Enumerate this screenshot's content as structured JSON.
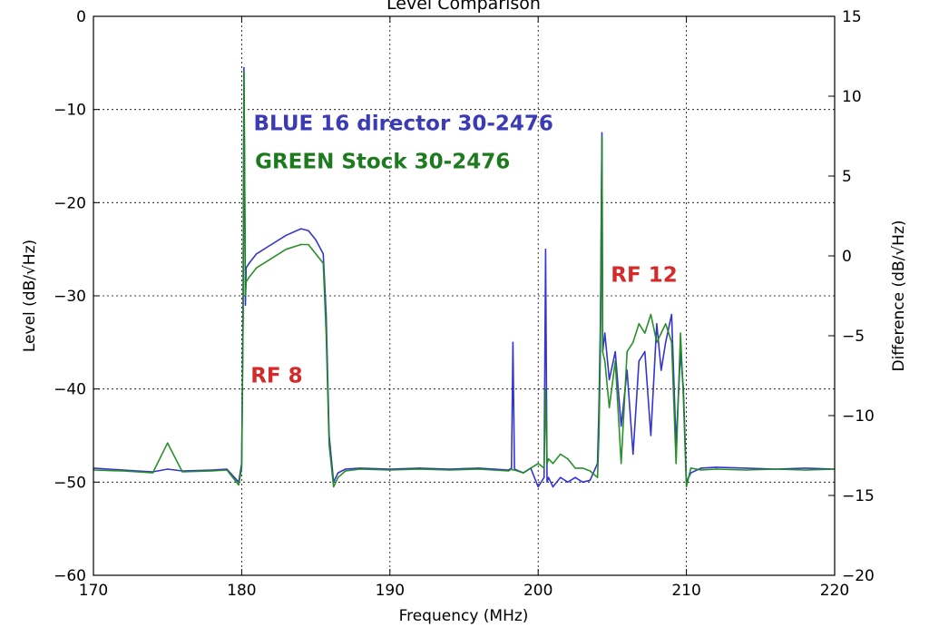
{
  "chart_data": {
    "type": "line",
    "title": "Level Comparison",
    "xlabel": "Frequency (MHz)",
    "ylabel": "Level (dB/√Hz)",
    "y2label": "Difference (dB/√Hz)",
    "xlim": [
      170,
      220
    ],
    "ylim": [
      -60,
      0
    ],
    "y2lim": [
      -20,
      15
    ],
    "xticks": [
      170,
      180,
      190,
      200,
      210,
      220
    ],
    "yticks": [
      0,
      -10,
      -20,
      -30,
      -40,
      -50,
      -60
    ],
    "y2ticks": [
      15,
      10,
      5,
      0,
      -5,
      -10,
      -15,
      -20
    ],
    "xtick_labels": [
      "170",
      "180",
      "190",
      "200",
      "210",
      "220"
    ],
    "ytick_labels": [
      "0",
      "−10",
      "−20",
      "−30",
      "−40",
      "−50",
      "−60"
    ],
    "y2tick_labels": [
      "15",
      "10",
      "5",
      "0",
      "−5",
      "−10",
      "−15",
      "−20"
    ],
    "grid": true,
    "annotations": [
      {
        "text": "BLUE 16 director 30-2476",
        "color": "#3b3bb5",
        "x": 180.8,
        "y": -12.2
      },
      {
        "text": "GREEN Stock 30-2476",
        "color": "#1e7a1e",
        "x": 180.9,
        "y": -16.3
      },
      {
        "text": "RF 8",
        "color": "#d42a2a",
        "x": 180.6,
        "y": -39.3
      },
      {
        "text": "RF 12",
        "color": "#d42a2a",
        "x": 204.9,
        "y": -28.5
      }
    ],
    "series": [
      {
        "color": "#2a2acc",
        "x": [
          170,
          172,
          174,
          175,
          176,
          178,
          179,
          179.8,
          180,
          180.1,
          180.15,
          180.25,
          180.3,
          180.5,
          181,
          182,
          183,
          184,
          184.5,
          185,
          185.5,
          185.7,
          185.9,
          186.2,
          186.5,
          187,
          188,
          190,
          192,
          194,
          196,
          198,
          198.2,
          198.3,
          198.4,
          199,
          199.5,
          200,
          200.4,
          200.5,
          200.6,
          200.7,
          201,
          201.5,
          202,
          202.5,
          203,
          203.5,
          204,
          204.1,
          204.2,
          204.3,
          204.35,
          204.5,
          204.8,
          205.2,
          205.6,
          206,
          206.4,
          206.8,
          207.2,
          207.6,
          208,
          208.3,
          208.6,
          209,
          209.3,
          209.6,
          209.8,
          210,
          210.3,
          211,
          212,
          214,
          216,
          218,
          220
        ],
        "values": [
          -48.5,
          -48.7,
          -48.9,
          -48.6,
          -48.8,
          -48.7,
          -48.6,
          -50.0,
          -48.0,
          -31.0,
          -5.5,
          -31.0,
          -27.0,
          -26.5,
          -25.5,
          -24.5,
          -23.5,
          -22.8,
          -23.0,
          -24.0,
          -25.5,
          -32.0,
          -45.0,
          -50.0,
          -49.0,
          -48.6,
          -48.5,
          -48.6,
          -48.5,
          -48.6,
          -48.5,
          -48.7,
          -48.5,
          -35.0,
          -48.6,
          -49.0,
          -48.5,
          -50.5,
          -49.5,
          -25.0,
          -50.0,
          -49.5,
          -50.5,
          -49.5,
          -50.0,
          -49.5,
          -50.0,
          -49.8,
          -48.0,
          -42.0,
          -33.0,
          -12.5,
          -36.0,
          -34.0,
          -39.0,
          -36.0,
          -44.0,
          -38.0,
          -47.0,
          -37.0,
          -36.0,
          -45.0,
          -33.0,
          -38.0,
          -35.0,
          -32.0,
          -46.0,
          -36.0,
          -40.0,
          -50.0,
          -49.0,
          -48.5,
          -48.4,
          -48.5,
          -48.6,
          -48.5,
          -48.6
        ]
      },
      {
        "color": "#1f8a1f",
        "x": [
          170,
          172,
          174,
          175,
          176,
          178,
          179,
          179.8,
          180,
          180.1,
          180.15,
          180.25,
          180.3,
          180.5,
          181,
          182,
          183,
          184,
          184.5,
          185,
          185.5,
          185.7,
          185.9,
          186.2,
          186.5,
          187,
          188,
          190,
          192,
          194,
          196,
          198,
          198.2,
          198.3,
          198.4,
          199,
          199.5,
          200,
          200.4,
          200.5,
          200.6,
          200.7,
          201,
          201.5,
          202,
          202.5,
          203,
          203.5,
          204,
          204.1,
          204.2,
          204.3,
          204.35,
          204.5,
          204.8,
          205.2,
          205.6,
          206,
          206.4,
          206.8,
          207.2,
          207.6,
          208,
          208.3,
          208.6,
          209,
          209.3,
          209.6,
          209.8,
          210,
          210.3,
          211,
          212,
          214,
          216,
          218,
          220
        ],
        "values": [
          -48.7,
          -48.8,
          -49.0,
          -45.8,
          -48.9,
          -48.8,
          -48.7,
          -50.3,
          -48.5,
          -32.0,
          -6.0,
          -30.0,
          -28.5,
          -28.0,
          -27.0,
          -26.0,
          -25.0,
          -24.5,
          -24.5,
          -25.5,
          -26.5,
          -34.0,
          -46.0,
          -50.5,
          -49.5,
          -48.8,
          -48.6,
          -48.7,
          -48.6,
          -48.7,
          -48.6,
          -48.8,
          -48.6,
          -48.7,
          -48.7,
          -49.0,
          -48.5,
          -48.0,
          -48.5,
          -40.0,
          -48.0,
          -47.5,
          -48.0,
          -47.0,
          -47.5,
          -48.5,
          -48.5,
          -48.8,
          -49.5,
          -45.0,
          -36.0,
          -13.0,
          -36.0,
          -37.0,
          -42.0,
          -37.0,
          -48.0,
          -36.0,
          -35.0,
          -33.0,
          -34.0,
          -32.0,
          -35.0,
          -34.0,
          -33.0,
          -35.0,
          -48.0,
          -34.0,
          -41.0,
          -50.5,
          -48.5,
          -48.7,
          -48.6,
          -48.7,
          -48.6,
          -48.7,
          -48.6
        ]
      }
    ]
  }
}
